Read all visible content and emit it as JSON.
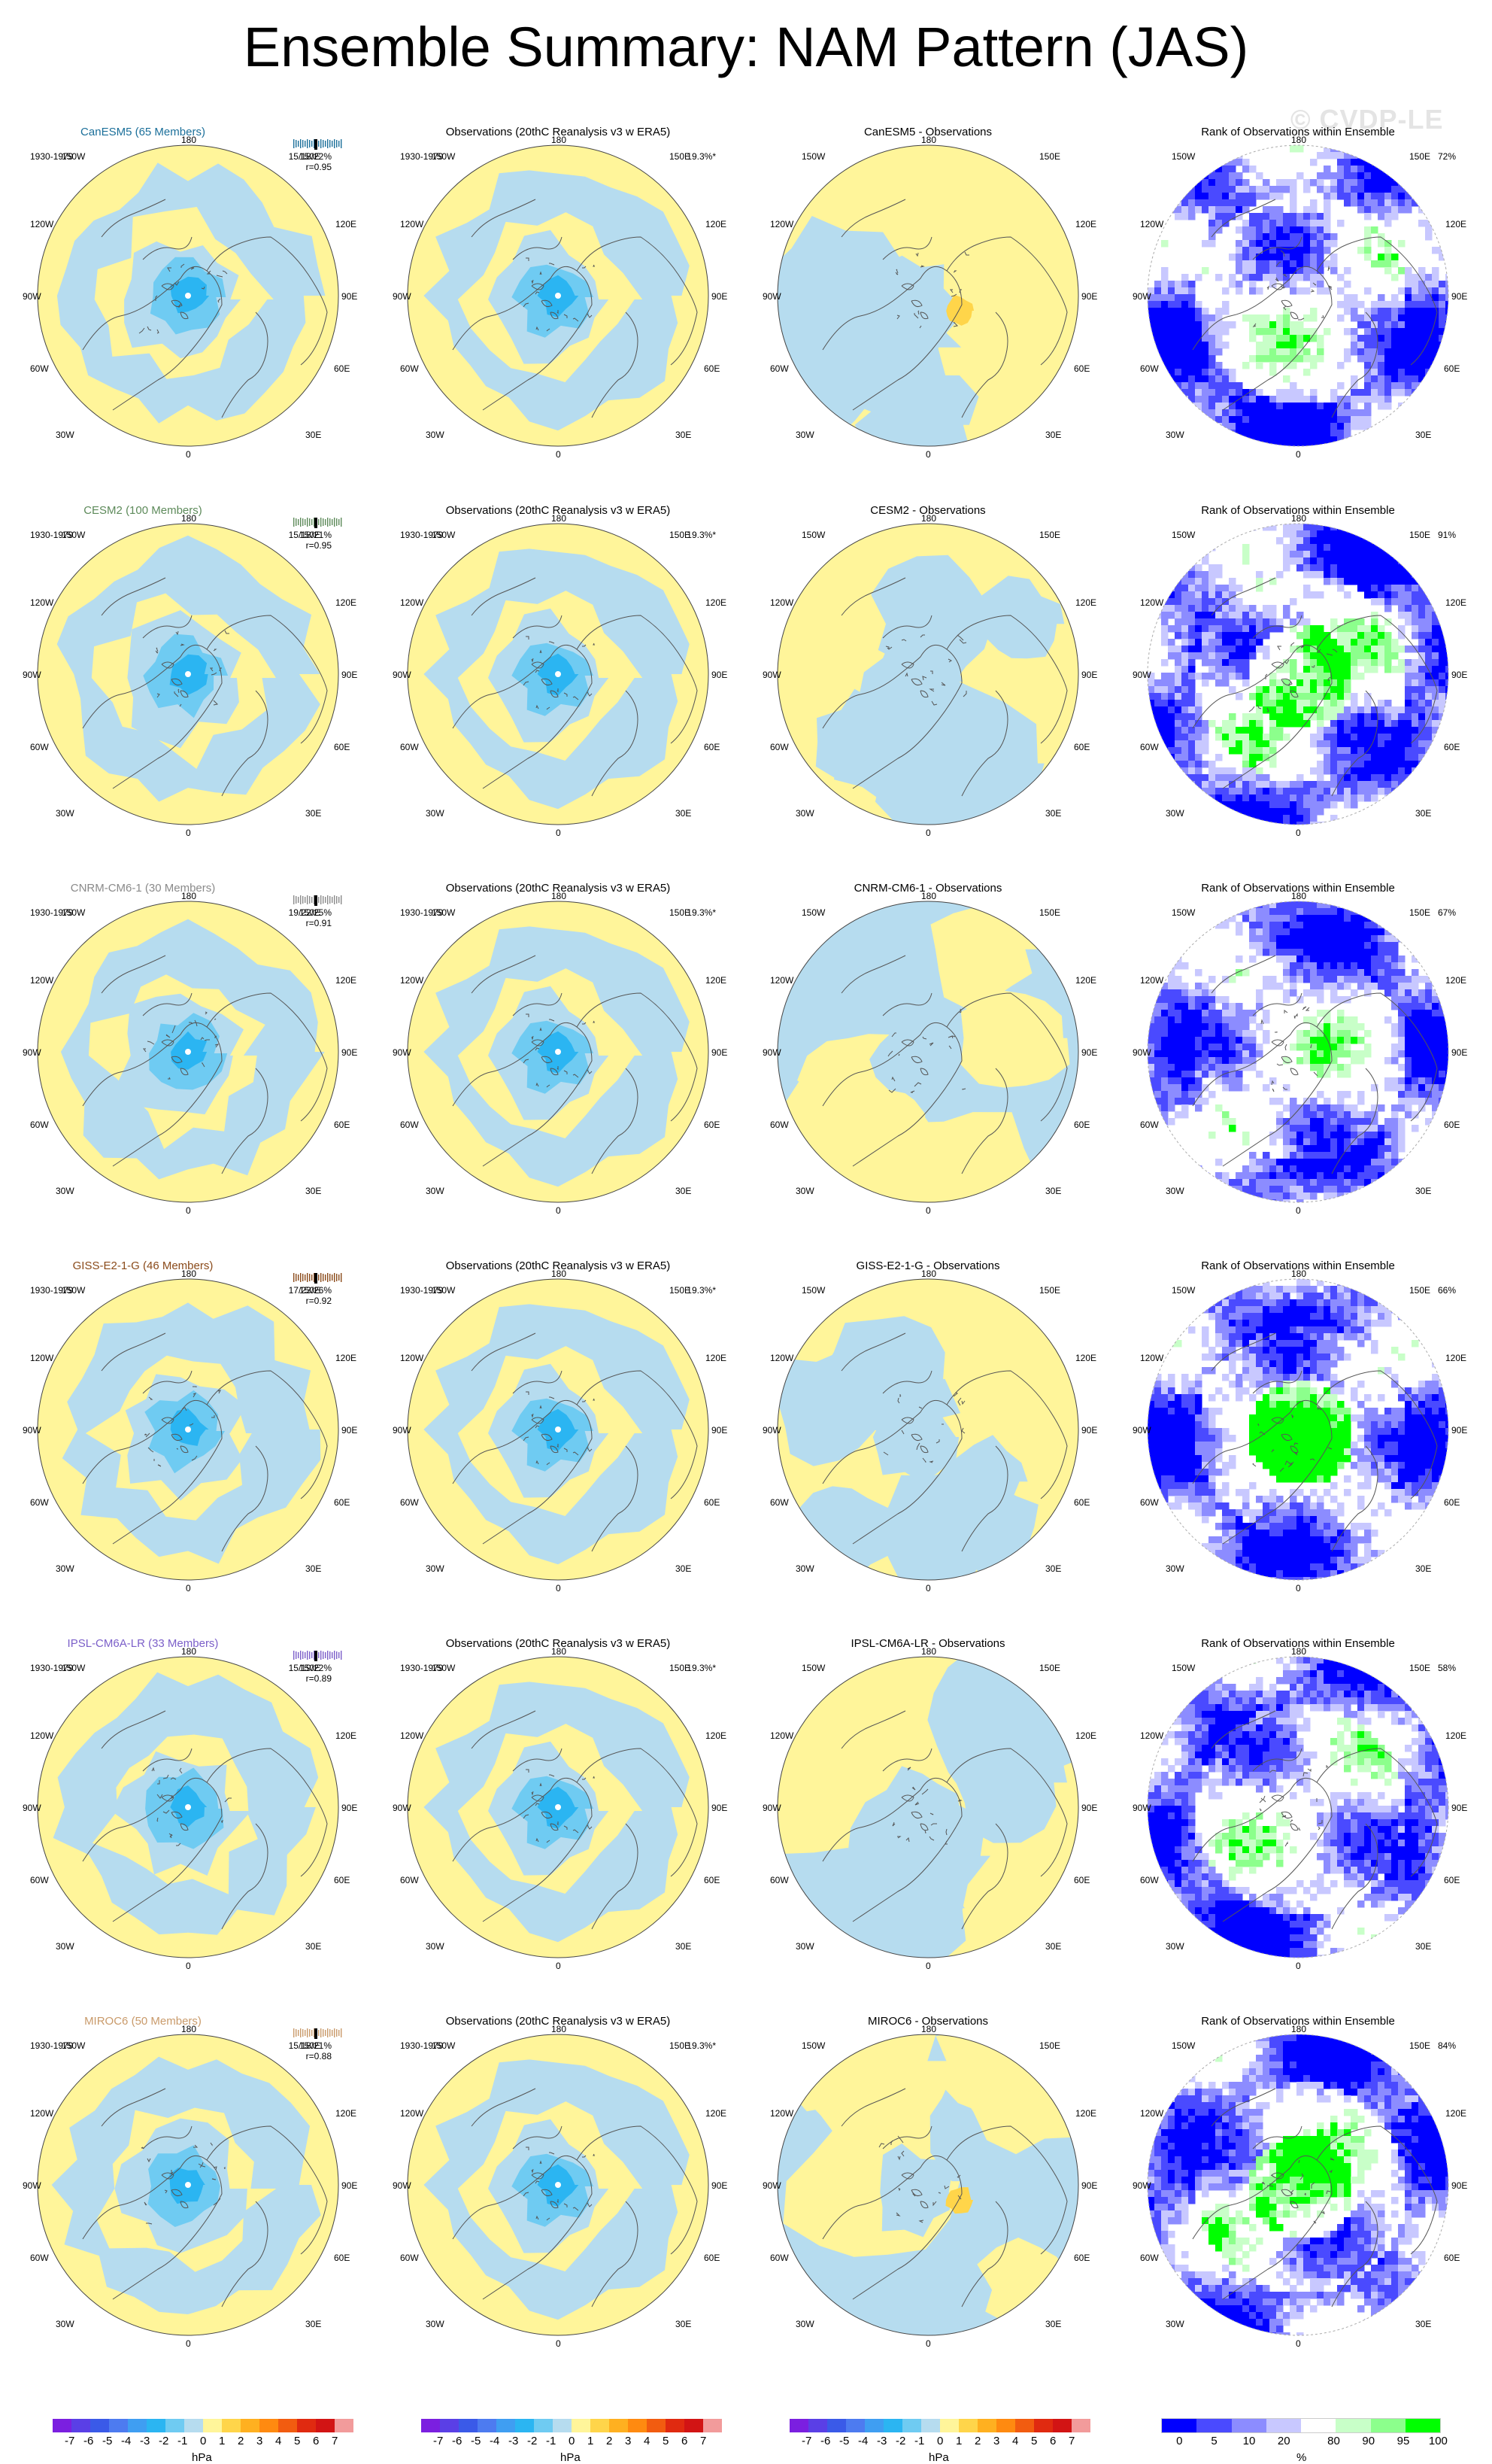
{
  "title": "Ensemble Summary: NAM Pattern (JAS)",
  "watermark": "© CVDP-LE",
  "period": "1930-1979",
  "obs_title": "Observations (20thC Reanalysis v3 w ERA5)",
  "obs_pct": "19.3%*",
  "rank_title": "Rank of Observations within Ensemble",
  "lon_labels": {
    "n": "180",
    "s": "0",
    "nw1": "150W",
    "nw2": "120W",
    "w": "90W",
    "sw2": "60W",
    "sw1": "30W",
    "ne1": "150E",
    "ne2": "120E",
    "e": "90E",
    "se2": "60E",
    "se1": "30E"
  },
  "rows": [
    {
      "model": "CanESM5 (65 Members)",
      "color": "#1b6f9a",
      "stats": "15/18/22%",
      "r": "r=0.95",
      "diff": "CanESM5 - Observations",
      "rank": "72%",
      "pattern": 0
    },
    {
      "model": "CESM2 (100 Members)",
      "color": "#5d8a5a",
      "stats": "15/18/21%",
      "r": "r=0.95",
      "diff": "CESM2 - Observations",
      "rank": "91%",
      "pattern": 1
    },
    {
      "model": "CNRM-CM6-1 (30 Members)",
      "color": "#8a8a8a",
      "stats": "19/22/25%",
      "r": "r=0.91",
      "diff": "CNRM-CM6-1 - Observations",
      "rank": "67%",
      "pattern": 2
    },
    {
      "model": "GISS-E2-1-G (46 Members)",
      "color": "#8a4a1a",
      "stats": "17/23/26%",
      "r": "r=0.92",
      "diff": "GISS-E2-1-G - Observations",
      "rank": "66%",
      "pattern": 3
    },
    {
      "model": "IPSL-CM6A-LR (33 Members)",
      "color": "#7b5fc9",
      "stats": "15/19/22%",
      "r": "r=0.89",
      "diff": "IPSL-CM6A-LR - Observations",
      "rank": "58%",
      "pattern": 4
    },
    {
      "model": "MIROC6 (50 Members)",
      "color": "#c99a6a",
      "stats": "15/18/21%",
      "r": "r=0.88",
      "diff": "MIROC6 - Observations",
      "rank": "84%",
      "pattern": 5
    }
  ],
  "chart_data": {
    "type": "polar-contour-map-grid",
    "projection": "north polar stereographic",
    "season": "JAS",
    "rows": 6,
    "columns": 4,
    "column_titles": [
      "<model> (<n> Members)",
      "Observations (20thC Reanalysis v3 w ERA5)",
      "<model> - Observations",
      "Rank of Observations within Ensemble"
    ],
    "pattern_colorbar": {
      "unit": "hPa",
      "levels": [
        -7,
        -6,
        -5,
        -4,
        -3,
        -2,
        -1,
        0,
        1,
        2,
        3,
        4,
        5,
        6,
        7
      ],
      "tick_labels": [
        "-7",
        "-6",
        "-5",
        "-4",
        "-3",
        "-2",
        "-1",
        "0",
        "1",
        "2",
        "3",
        "4",
        "5",
        "6",
        "7"
      ],
      "colors": [
        "#7b1fe0",
        "#5a3fe6",
        "#3a5ae8",
        "#4d7bf0",
        "#3f9ef2",
        "#2bb5f2",
        "#6fcbf2",
        "#b6dcef",
        "#fff59a",
        "#ffd54a",
        "#ffb020",
        "#ff8a10",
        "#f25c10",
        "#e02a10",
        "#d21414",
        "#f29b9b"
      ]
    },
    "rank_colorbar": {
      "unit": "%",
      "tick_labels": [
        "0",
        "5",
        "10",
        "20",
        "80",
        "90",
        "95",
        "100"
      ],
      "colors": [
        "#0000ff",
        "#4a4aff",
        "#8c8cff",
        "#c8c8ff",
        "#ffffff",
        "#c8ffc8",
        "#8cff8c",
        "#00ff00"
      ]
    }
  },
  "colorbar_ticks_pattern": [
    "-7",
    "-6",
    "-5",
    "-4",
    "-3",
    "-2",
    "-1",
    "0",
    "1",
    "2",
    "3",
    "4",
    "5",
    "6",
    "7"
  ],
  "colorbar_ticks_rank": [
    "0",
    "5",
    "10",
    "20",
    "80",
    "90",
    "95",
    "100"
  ],
  "unit_hpa": "hPa",
  "unit_pct": "%"
}
